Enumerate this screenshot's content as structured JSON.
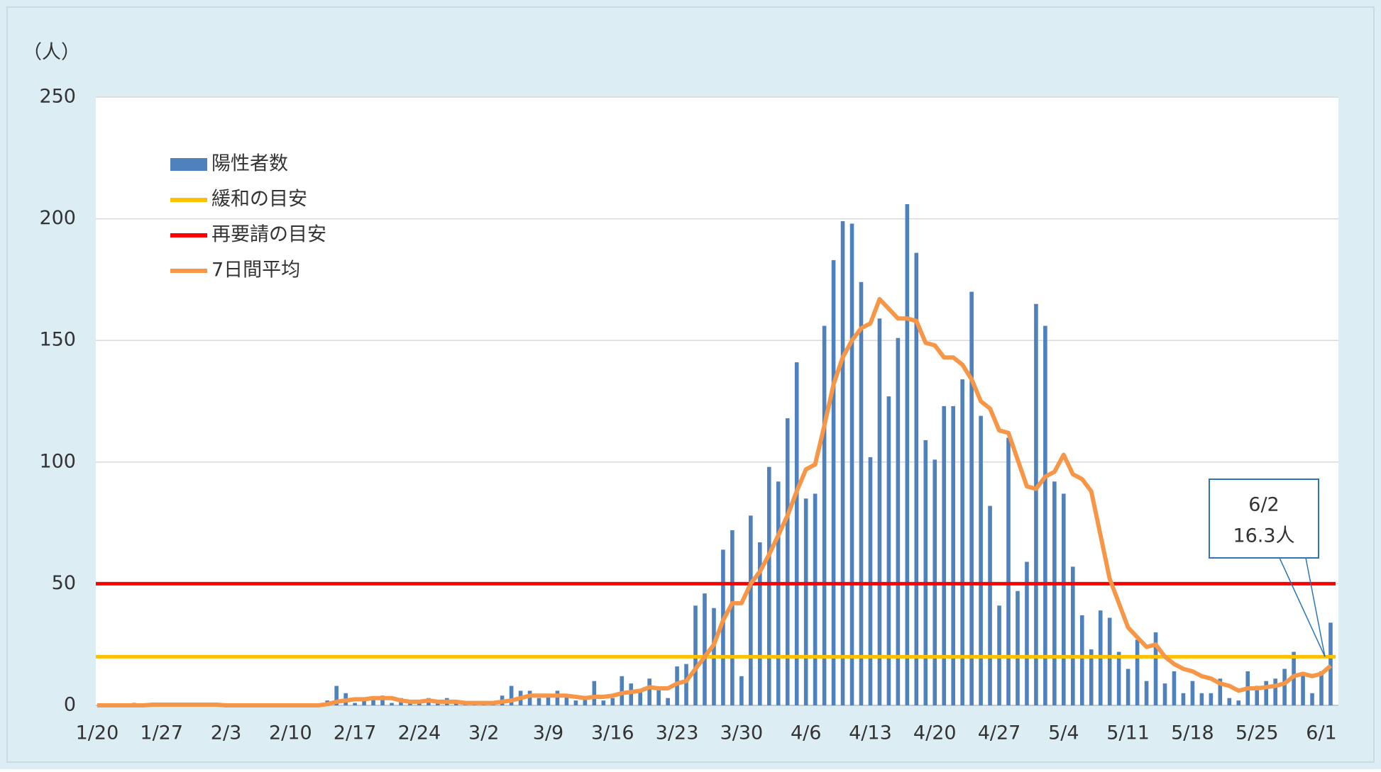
{
  "chart_data": {
    "type": "bar",
    "y_label": "（人）",
    "ylim": [
      0,
      250
    ],
    "yticks": [
      0,
      50,
      100,
      150,
      200,
      250
    ],
    "grid": true,
    "legend": "upper left",
    "categories": [
      "1/20",
      null,
      null,
      null,
      null,
      null,
      null,
      "1/27",
      null,
      null,
      null,
      null,
      null,
      null,
      "2/3",
      null,
      null,
      null,
      null,
      null,
      null,
      "2/10",
      null,
      null,
      null,
      null,
      null,
      null,
      "2/17",
      null,
      null,
      null,
      null,
      null,
      null,
      "2/24",
      null,
      null,
      null,
      null,
      null,
      null,
      "3/2",
      null,
      null,
      null,
      null,
      null,
      null,
      "3/9",
      null,
      null,
      null,
      null,
      null,
      null,
      "3/16",
      null,
      null,
      null,
      null,
      null,
      null,
      "3/23",
      null,
      null,
      null,
      null,
      null,
      null,
      "3/30",
      null,
      null,
      null,
      null,
      null,
      null,
      "4/6",
      null,
      null,
      null,
      null,
      null,
      null,
      "4/13",
      null,
      null,
      null,
      null,
      null,
      null,
      "4/20",
      null,
      null,
      null,
      null,
      null,
      null,
      "4/27",
      null,
      null,
      null,
      null,
      null,
      null,
      "5/4",
      null,
      null,
      null,
      null,
      null,
      null,
      "5/11",
      null,
      null,
      null,
      null,
      null,
      null,
      "5/18",
      null,
      null,
      null,
      null,
      null,
      null,
      "5/25",
      null,
      null,
      null,
      null,
      null,
      null,
      "6/1",
      null
    ],
    "series": [
      {
        "name": "陽性者数",
        "type": "bar",
        "color": "#4f81bd",
        "values": [
          0,
          0,
          0,
          0,
          1,
          0,
          0,
          1,
          0,
          0,
          0,
          1,
          0,
          0,
          0,
          0,
          0,
          0,
          0,
          0,
          0,
          0,
          0,
          0,
          0,
          2,
          8,
          5,
          1,
          2,
          3,
          4,
          1,
          3,
          1,
          1,
          3,
          1,
          3,
          2,
          1,
          1,
          1,
          1,
          4,
          8,
          6,
          6,
          3,
          4,
          6,
          4,
          2,
          3,
          10,
          2,
          3,
          12,
          9,
          6,
          11,
          7,
          3,
          16,
          17,
          41,
          46,
          40,
          64,
          72,
          12,
          78,
          67,
          98,
          92,
          118,
          141,
          85,
          87,
          156,
          183,
          199,
          198,
          174,
          102,
          159,
          127,
          151,
          206,
          186,
          109,
          101,
          123,
          123,
          134,
          170,
          119,
          82,
          41,
          110,
          47,
          59,
          165,
          156,
          92,
          87,
          57,
          37,
          23,
          39,
          36,
          22,
          15,
          27,
          10,
          30,
          9,
          14,
          5,
          10,
          5,
          5,
          11,
          3,
          2,
          14,
          8,
          10,
          11,
          15,
          22,
          13,
          5,
          14,
          34
        ]
      },
      {
        "name": "緩和の目安",
        "type": "hline",
        "color": "#ffc000",
        "value": 20
      },
      {
        "name": "再要請の目安",
        "type": "hline",
        "color": "#ff0000",
        "value": 50
      },
      {
        "name": "7日間平均",
        "type": "line",
        "color": "#f79646",
        "values": [
          0,
          0,
          0,
          0,
          0,
          0,
          0.3,
          0.3,
          0.3,
          0.3,
          0.3,
          0.3,
          0.3,
          0.3,
          0,
          0,
          0,
          0,
          0,
          0,
          0,
          0,
          0,
          0,
          0,
          0.5,
          1.5,
          2,
          2.5,
          2.5,
          3,
          3,
          3,
          2,
          1.5,
          1.5,
          2,
          1.5,
          1.5,
          1.5,
          1,
          1,
          1,
          1,
          1.5,
          2,
          3,
          4,
          4,
          4,
          4,
          4,
          3.5,
          3,
          3.5,
          3.5,
          4,
          5,
          5.5,
          6,
          7.5,
          7,
          7,
          9,
          10,
          15,
          20,
          25,
          35,
          42,
          42,
          50,
          55,
          62,
          70,
          78,
          88,
          97,
          99,
          115,
          132,
          143,
          150,
          155,
          157,
          167,
          163,
          159,
          159,
          158,
          149,
          148,
          143,
          143,
          140,
          134,
          125,
          122,
          113,
          112,
          101,
          90,
          89,
          94,
          96,
          103,
          95,
          93,
          88,
          70,
          52,
          42,
          32,
          28,
          24,
          25,
          20,
          17,
          15,
          14,
          12,
          11,
          9,
          8,
          6,
          7,
          7,
          7.5,
          8,
          9,
          12,
          13,
          12,
          13,
          16.3
        ]
      }
    ],
    "annotation": [
      "6/2",
      "16.3人"
    ]
  }
}
